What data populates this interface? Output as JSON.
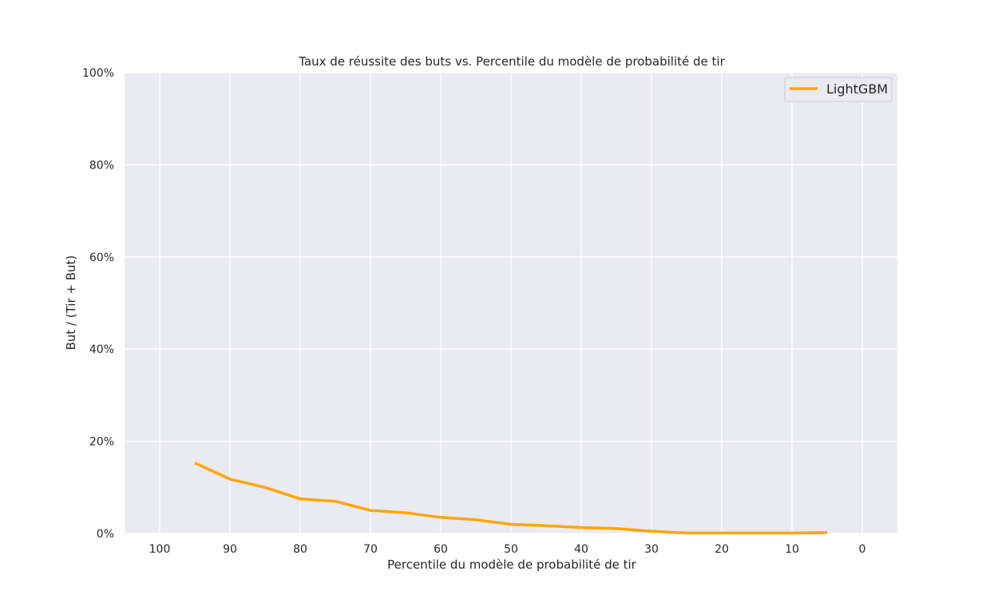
{
  "chart_data": {
    "type": "line",
    "title": "Taux de réussite des buts vs. Percentile du modèle de probabilité de tir",
    "xlabel": "Percentile du modèle de probabilité de tir",
    "ylabel": "But / (Tir + But)",
    "xlim": [
      105,
      -5
    ],
    "ylim": [
      0,
      100
    ],
    "x_inverted": true,
    "x_ticks": [
      100,
      90,
      80,
      70,
      60,
      50,
      40,
      30,
      20,
      10,
      0
    ],
    "x_tick_labels": [
      "100",
      "90",
      "80",
      "70",
      "60",
      "50",
      "40",
      "30",
      "20",
      "10",
      "0"
    ],
    "y_ticks": [
      0,
      20,
      40,
      60,
      80,
      100
    ],
    "y_tick_labels": [
      "0%",
      "20%",
      "40%",
      "60%",
      "80%",
      "100%"
    ],
    "grid": true,
    "legend_placement": "top-right",
    "series": [
      {
        "name": "LightGBM",
        "color": "#ffa500",
        "x": [
          95,
          90,
          85,
          80,
          75,
          70,
          65,
          60,
          55,
          50,
          45,
          40,
          35,
          30,
          25,
          20,
          15,
          10,
          5
        ],
        "values": [
          15.3,
          11.8,
          10.0,
          7.5,
          7.0,
          5.0,
          4.5,
          3.5,
          3.0,
          2.0,
          1.7,
          1.3,
          1.1,
          0.5,
          0.1,
          0.1,
          0.1,
          0.1,
          0.2
        ]
      }
    ]
  },
  "colors": {
    "plot_background": "#eaeaf2",
    "grid": "#ffffff",
    "text": "#262626"
  }
}
